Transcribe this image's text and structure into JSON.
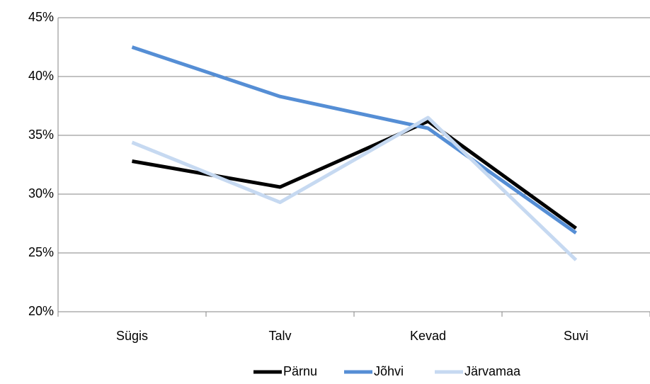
{
  "chart_data": {
    "type": "line",
    "categories": [
      "Sügis",
      "Talv",
      "Kevad",
      "Suvi"
    ],
    "series": [
      {
        "name": "Pärnu",
        "color": "#000000",
        "values": [
          32.8,
          30.6,
          36.2,
          27.1
        ]
      },
      {
        "name": "Jõhvi",
        "color": "#558ed5",
        "values": [
          42.5,
          38.3,
          35.6,
          26.7
        ]
      },
      {
        "name": "Järvamaa",
        "color": "#c6d9f1",
        "values": [
          34.4,
          29.3,
          36.5,
          24.4
        ]
      }
    ],
    "ylim": [
      20,
      45
    ],
    "yticks": [
      {
        "value": 20,
        "label": "20%"
      },
      {
        "value": 25,
        "label": "25%"
      },
      {
        "value": 30,
        "label": "30%"
      },
      {
        "value": 35,
        "label": "35%"
      },
      {
        "value": 40,
        "label": "40%"
      },
      {
        "value": 45,
        "label": "45%"
      }
    ],
    "grid": true,
    "legend": "bottom"
  }
}
